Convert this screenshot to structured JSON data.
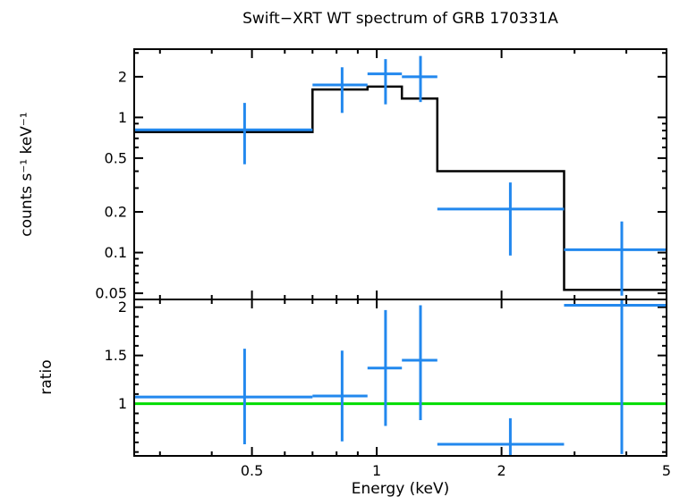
{
  "title": "Swift−XRT WT spectrum of GRB 170331A",
  "xlabel": "Energy (keV)",
  "colors": {
    "data": "#2288ee",
    "model": "#000000",
    "unity_line": "#00dd00",
    "axis": "#000000",
    "background": "#ffffff"
  },
  "chart_data": [
    {
      "name": "counts",
      "type": "line",
      "ylabel": "counts s⁻¹ keV⁻¹",
      "xscale": "log",
      "yscale": "log",
      "xlim": [
        0.26,
        5.0
      ],
      "ylim": [
        0.045,
        3.2
      ],
      "xticks": [
        0.5,
        1,
        2,
        5
      ],
      "yticks": [
        0.05,
        0.1,
        0.2,
        0.5,
        1,
        2
      ],
      "grid": false,
      "show_x_tick_labels": false,
      "model_steps": [
        {
          "x_lo": 0.26,
          "x_hi": 0.7,
          "y": 0.78
        },
        {
          "x_lo": 0.7,
          "x_hi": 0.95,
          "y": 1.61
        },
        {
          "x_lo": 0.95,
          "x_hi": 1.15,
          "y": 1.69
        },
        {
          "x_lo": 1.15,
          "x_hi": 1.4,
          "y": 1.38
        },
        {
          "x_lo": 1.4,
          "x_hi": 2.83,
          "y": 0.4
        },
        {
          "x_lo": 2.83,
          "x_hi": 5.0,
          "y": 0.053
        }
      ],
      "points": [
        {
          "x": 0.48,
          "x_lo": 0.26,
          "x_hi": 0.7,
          "y": 0.81,
          "y_lo": 0.45,
          "y_hi": 1.28
        },
        {
          "x": 0.825,
          "x_lo": 0.7,
          "x_hi": 0.95,
          "y": 1.74,
          "y_lo": 1.08,
          "y_hi": 2.35
        },
        {
          "x": 1.05,
          "x_lo": 0.95,
          "x_hi": 1.15,
          "y": 2.1,
          "y_lo": 1.25,
          "y_hi": 2.7
        },
        {
          "x": 1.275,
          "x_lo": 1.15,
          "x_hi": 1.4,
          "y": 2.0,
          "y_lo": 1.3,
          "y_hi": 2.85
        },
        {
          "x": 2.1,
          "x_lo": 1.4,
          "x_hi": 2.83,
          "y": 0.21,
          "y_lo": 0.095,
          "y_hi": 0.33
        },
        {
          "x": 3.9,
          "x_lo": 2.83,
          "x_hi": 5.0,
          "y": 0.105,
          "y_lo": 0.048,
          "y_hi": 0.17
        }
      ]
    },
    {
      "name": "ratio",
      "type": "scatter",
      "ylabel": "ratio",
      "xscale": "log",
      "yscale": "linear",
      "xlim": [
        0.26,
        5.0
      ],
      "ylim": [
        0.46,
        2.08
      ],
      "xticks": [
        0.5,
        1,
        2,
        5
      ],
      "yticks": [
        1,
        1.5,
        2
      ],
      "y_minor_step": 0.1,
      "grid": false,
      "show_x_tick_labels": true,
      "unity_line": 1.0,
      "points": [
        {
          "x": 0.48,
          "x_lo": 0.26,
          "x_hi": 0.7,
          "y": 1.07,
          "y_lo": 0.58,
          "y_hi": 1.57
        },
        {
          "x": 0.825,
          "x_lo": 0.7,
          "x_hi": 0.95,
          "y": 1.08,
          "y_lo": 0.61,
          "y_hi": 1.55
        },
        {
          "x": 1.05,
          "x_lo": 0.95,
          "x_hi": 1.15,
          "y": 1.37,
          "y_lo": 0.77,
          "y_hi": 1.97
        },
        {
          "x": 1.275,
          "x_lo": 1.15,
          "x_hi": 1.4,
          "y": 1.45,
          "y_lo": 0.83,
          "y_hi": 2.02
        },
        {
          "x": 2.1,
          "x_lo": 1.4,
          "x_hi": 2.83,
          "y": 0.58,
          "y_lo": 0.42,
          "y_hi": 0.85
        },
        {
          "x": 3.9,
          "x_lo": 2.83,
          "x_hi": 5.0,
          "y": 2.02,
          "y_lo": 0.48,
          "y_hi": 2.2
        }
      ]
    }
  ]
}
